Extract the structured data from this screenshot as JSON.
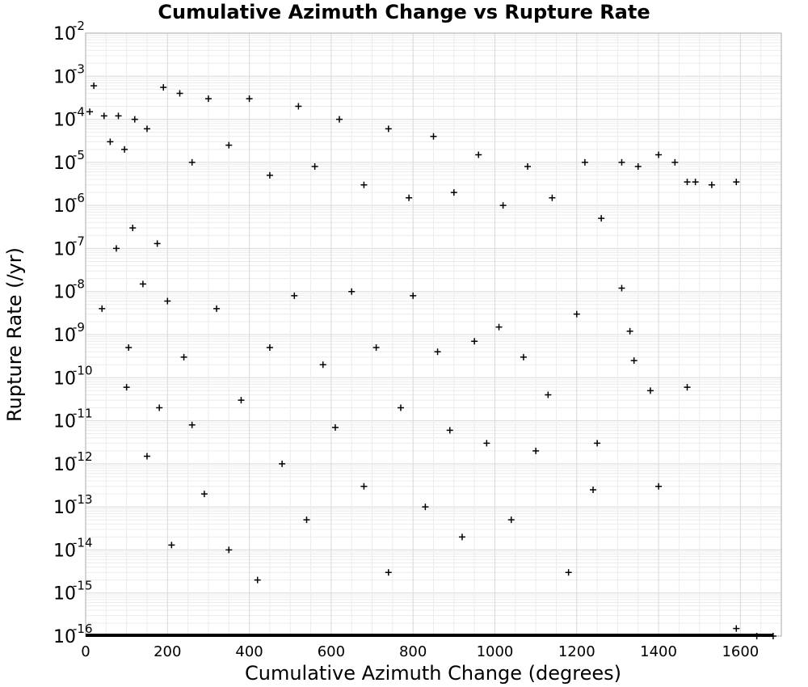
{
  "chart_data": {
    "type": "scatter",
    "title": "Cumulative Azimuth Change vs Rupture Rate",
    "xlabel": "Cumulative Azimuth Change (degrees)",
    "ylabel": "Rupture Rate (/yr)",
    "xlim": [
      0,
      1700
    ],
    "ylim": [
      1e-16,
      0.01
    ],
    "yscale": "log",
    "xticks": [
      "0",
      "200",
      "400",
      "600",
      "800",
      "1000",
      "1200",
      "1400",
      "1600"
    ],
    "yticks": [
      {
        "base": "10",
        "exp": "-2"
      },
      {
        "base": "10",
        "exp": "-3"
      },
      {
        "base": "10",
        "exp": "-4"
      },
      {
        "base": "10",
        "exp": "-5"
      },
      {
        "base": "10",
        "exp": "-6"
      },
      {
        "base": "10",
        "exp": "-7"
      },
      {
        "base": "10",
        "exp": "-8"
      },
      {
        "base": "10",
        "exp": "-9"
      },
      {
        "base": "10",
        "exp": "-10"
      },
      {
        "base": "10",
        "exp": "-11"
      },
      {
        "base": "10",
        "exp": "-12"
      },
      {
        "base": "10",
        "exp": "-13"
      },
      {
        "base": "10",
        "exp": "-14"
      },
      {
        "base": "10",
        "exp": "-15"
      },
      {
        "base": "10",
        "exp": "-16"
      }
    ],
    "grid": true,
    "marker": "+",
    "marker_color": "#000000",
    "series": [
      {
        "points": [
          [
            10,
            0.00015
          ],
          [
            20,
            0.0006
          ],
          [
            45,
            0.00012
          ],
          [
            60,
            3e-05
          ],
          [
            80,
            0.00012
          ],
          [
            95,
            2e-05
          ],
          [
            120,
            0.0001
          ],
          [
            150,
            6e-05
          ],
          [
            190,
            0.00055
          ],
          [
            230,
            0.0004
          ],
          [
            260,
            1e-05
          ],
          [
            300,
            0.0003
          ],
          [
            350,
            2.5e-05
          ],
          [
            400,
            0.0003
          ],
          [
            450,
            5e-06
          ],
          [
            520,
            0.0002
          ],
          [
            560,
            8e-06
          ],
          [
            620,
            0.0001
          ],
          [
            680,
            3e-06
          ],
          [
            740,
            6e-05
          ],
          [
            790,
            1.5e-06
          ],
          [
            850,
            4e-05
          ],
          [
            900,
            2e-06
          ],
          [
            960,
            1.5e-05
          ],
          [
            1020,
            1e-06
          ],
          [
            1080,
            8e-06
          ],
          [
            1140,
            1.5e-06
          ],
          [
            1220,
            1e-05
          ],
          [
            1260,
            5e-07
          ],
          [
            1310,
            1e-05
          ],
          [
            1350,
            8e-06
          ],
          [
            1400,
            1.5e-05
          ],
          [
            1440,
            1e-05
          ],
          [
            1470,
            3.5e-06
          ],
          [
            1490,
            3.5e-06
          ],
          [
            1530,
            3e-06
          ],
          [
            1590,
            3.5e-06
          ],
          [
            40,
            4e-09
          ],
          [
            75,
            1e-07
          ],
          [
            100,
            6e-11
          ],
          [
            105,
            5e-10
          ],
          [
            115,
            3e-07
          ],
          [
            140,
            1.5e-08
          ],
          [
            150,
            1.5e-12
          ],
          [
            175,
            1.3e-07
          ],
          [
            180,
            2e-11
          ],
          [
            200,
            6e-09
          ],
          [
            210,
            1.3e-14
          ],
          [
            240,
            3e-10
          ],
          [
            260,
            8e-12
          ],
          [
            290,
            2e-13
          ],
          [
            320,
            4e-09
          ],
          [
            350,
            1e-14
          ],
          [
            380,
            3e-11
          ],
          [
            420,
            2e-15
          ],
          [
            450,
            5e-10
          ],
          [
            480,
            1e-12
          ],
          [
            510,
            8e-09
          ],
          [
            540,
            5e-14
          ],
          [
            580,
            2e-10
          ],
          [
            610,
            7e-12
          ],
          [
            650,
            1e-08
          ],
          [
            680,
            3e-13
          ],
          [
            710,
            5e-10
          ],
          [
            740,
            3e-15
          ],
          [
            770,
            2e-11
          ],
          [
            800,
            8e-09
          ],
          [
            830,
            1e-13
          ],
          [
            860,
            4e-10
          ],
          [
            890,
            6e-12
          ],
          [
            920,
            2e-14
          ],
          [
            950,
            7e-10
          ],
          [
            980,
            3e-12
          ],
          [
            1010,
            1.5e-09
          ],
          [
            1040,
            5e-14
          ],
          [
            1070,
            3e-10
          ],
          [
            1100,
            2e-12
          ],
          [
            1130,
            4e-11
          ],
          [
            1180,
            3e-15
          ],
          [
            1200,
            3e-09
          ],
          [
            1240,
            2.5e-13
          ],
          [
            1250,
            3e-12
          ],
          [
            1310,
            1.2e-08
          ],
          [
            1330,
            1.2e-09
          ],
          [
            1340,
            2.5e-10
          ],
          [
            1380,
            5e-11
          ],
          [
            1400,
            3e-13
          ],
          [
            1470,
            6e-11
          ],
          [
            1590,
            1.5e-16
          ],
          [
            1640,
            1e-16
          ],
          [
            1680,
            1e-16
          ]
        ]
      }
    ]
  }
}
